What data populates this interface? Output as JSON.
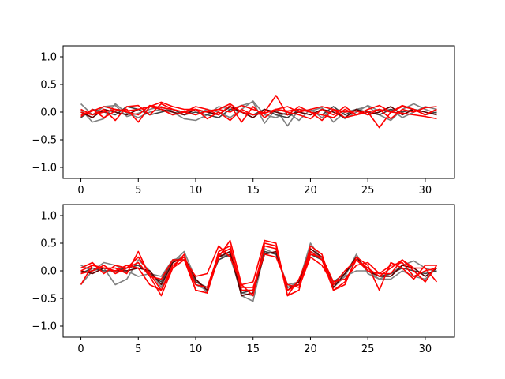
{
  "chart_data": [
    {
      "type": "line",
      "ylim": [
        -1.2,
        1.2
      ],
      "xlim": [
        -1.55,
        32.55
      ],
      "xticks": [
        0,
        5,
        10,
        15,
        20,
        25,
        30
      ],
      "yticks": [
        -1.0,
        -0.5,
        0.0,
        0.5,
        1.0
      ],
      "ytick_labels": [
        "−1.0",
        "−0.5",
        "0.0",
        "0.5",
        "1.0"
      ],
      "grid": false,
      "x": [
        0,
        1,
        2,
        3,
        4,
        5,
        6,
        7,
        8,
        9,
        10,
        11,
        12,
        13,
        14,
        15,
        16,
        17,
        18,
        19,
        20,
        21,
        22,
        23,
        24,
        25,
        26,
        27,
        28,
        29,
        30,
        31
      ],
      "series": [
        {
          "color": "#808080",
          "values": [
            0.15,
            -0.05,
            0.1,
            0.12,
            -0.08,
            -0.02,
            0.05,
            0.1,
            0.0,
            -0.12,
            -0.15,
            -0.05,
            0.1,
            0.05,
            0.12,
            0.18,
            -0.2,
            0.05,
            -0.25,
            0.05,
            0.02,
            0.08,
            -0.18,
            0.0,
            0.05,
            0.1,
            -0.05,
            -0.15,
            0.05,
            0.15,
            0.05,
            -0.02
          ]
        },
        {
          "color": "#808080",
          "values": [
            0.05,
            -0.18,
            -0.12,
            0.15,
            -0.02,
            -0.1,
            0.0,
            0.05,
            -0.05,
            0.02,
            -0.05,
            0.05,
            0.0,
            -0.1,
            0.05,
            0.2,
            -0.05,
            -0.1,
            0.0,
            -0.15,
            0.05,
            -0.1,
            0.05,
            -0.12,
            0.0,
            0.12,
            0.02,
            0.05,
            -0.1,
            0.0,
            0.1,
            0.05
          ]
        },
        {
          "color": "#404040",
          "values": [
            -0.1,
            0.05,
            0.0,
            -0.05,
            0.1,
            0.05,
            -0.05,
            0.0,
            0.05,
            -0.05,
            0.0,
            -0.05,
            -0.1,
            0.05,
            0.0,
            -0.05,
            0.05,
            -0.05,
            -0.1,
            0.05,
            0.0,
            -0.05,
            0.1,
            -0.05,
            0.05,
            0.0,
            -0.05,
            0.05,
            0.0,
            0.05,
            -0.05,
            0.0
          ]
        },
        {
          "color": "#600000",
          "values": [
            0.0,
            -0.1,
            0.05,
            0.0,
            -0.05,
            0.05,
            0.1,
            0.05,
            0.0,
            -0.05,
            0.05,
            0.0,
            -0.05,
            0.1,
            0.0,
            -0.1,
            0.05,
            0.0,
            -0.05,
            0.0,
            -0.05,
            0.05,
            0.0,
            -0.1,
            0.05,
            -0.05,
            0.0,
            0.1,
            -0.05,
            0.05,
            0.0,
            -0.05
          ]
        },
        {
          "color": "#ff0000",
          "values": [
            -0.08,
            0.05,
            -0.1,
            0.02,
            0.05,
            -0.18,
            0.1,
            0.05,
            -0.05,
            0.0,
            0.05,
            -0.12,
            0.0,
            -0.15,
            0.05,
            -0.05,
            0.0,
            0.3,
            -0.05,
            0.1,
            0.0,
            -0.05,
            -0.1,
            0.05,
            -0.05,
            0.0,
            -0.28,
            0.0,
            0.12,
            0.05,
            -0.05,
            0.05
          ]
        },
        {
          "color": "#ff0000",
          "values": [
            0.0,
            -0.05,
            0.05,
            -0.15,
            0.1,
            0.12,
            -0.05,
            0.15,
            0.05,
            0.0,
            0.1,
            0.05,
            -0.05,
            0.12,
            -0.18,
            0.1,
            -0.1,
            0.05,
            0.0,
            -0.05,
            -0.12,
            0.05,
            -0.05,
            0.1,
            -0.05,
            0.0,
            0.05,
            -0.12,
            0.05,
            0.0,
            0.08,
            0.1
          ]
        },
        {
          "color": "#ff0000",
          "values": [
            -0.05,
            0.02,
            0.1,
            0.05,
            0.0,
            -0.05,
            0.12,
            0.08,
            0.05,
            0.0,
            -0.05,
            0.02,
            0.05,
            0.0,
            0.12,
            0.05,
            -0.02,
            0.05,
            0.02,
            0.05,
            0.0,
            -0.15,
            0.05,
            -0.1,
            -0.05,
            0.05,
            0.12,
            0.0,
            0.1,
            0.05,
            -0.05,
            0.05
          ]
        },
        {
          "color": "#ff0000",
          "values": [
            0.05,
            -0.05,
            0.0,
            0.05,
            0.02,
            0.05,
            0.1,
            0.18,
            0.1,
            0.05,
            0.05,
            0.0,
            0.05,
            0.15,
            0.0,
            -0.05,
            -0.02,
            0.05,
            0.1,
            0.0,
            0.05,
            0.1,
            0.05,
            0.0,
            0.02,
            -0.05,
            0.05,
            0.0,
            -0.02,
            -0.05,
            -0.08,
            -0.12
          ]
        }
      ]
    },
    {
      "type": "line",
      "ylim": [
        -1.2,
        1.2
      ],
      "xlim": [
        -1.55,
        32.55
      ],
      "xticks": [
        0,
        5,
        10,
        15,
        20,
        25,
        30
      ],
      "yticks": [
        -1.0,
        -0.5,
        0.0,
        0.5,
        1.0
      ],
      "ytick_labels": [
        "−1.0",
        "−0.5",
        "0.0",
        "0.5",
        "1.0"
      ],
      "grid": false,
      "x": [
        0,
        1,
        2,
        3,
        4,
        5,
        6,
        7,
        8,
        9,
        10,
        11,
        12,
        13,
        14,
        15,
        16,
        17,
        18,
        19,
        20,
        21,
        22,
        23,
        24,
        25,
        26,
        27,
        28,
        29,
        30,
        31
      ],
      "series": [
        {
          "color": "#808080",
          "values": [
            -0.25,
            0.0,
            0.05,
            -0.25,
            -0.15,
            0.2,
            0.0,
            -0.3,
            0.15,
            0.35,
            -0.15,
            -0.4,
            0.25,
            0.3,
            -0.45,
            -0.55,
            0.35,
            0.3,
            -0.3,
            -0.2,
            0.5,
            0.2,
            -0.3,
            -0.1,
            0.3,
            -0.05,
            -0.15,
            -0.05,
            0.1,
            0.18,
            0.05,
            -0.02
          ]
        },
        {
          "color": "#808080",
          "values": [
            0.1,
            0.0,
            0.15,
            0.1,
            0.0,
            -0.1,
            -0.05,
            -0.1,
            0.2,
            0.25,
            -0.25,
            -0.35,
            0.3,
            0.25,
            -0.4,
            -0.45,
            0.4,
            0.3,
            -0.25,
            -0.2,
            0.35,
            0.25,
            -0.25,
            -0.1,
            0.0,
            0.0,
            -0.15,
            -0.15,
            0.0,
            -0.1,
            -0.15,
            0.05
          ]
        },
        {
          "color": "#404040",
          "values": [
            -0.05,
            0.05,
            0.0,
            0.0,
            0.05,
            0.1,
            -0.05,
            -0.2,
            0.2,
            0.2,
            -0.2,
            -0.3,
            0.2,
            0.3,
            -0.4,
            -0.35,
            0.35,
            0.3,
            -0.3,
            -0.25,
            0.3,
            0.2,
            -0.2,
            -0.05,
            0.2,
            0.05,
            -0.1,
            -0.05,
            0.05,
            0.0,
            -0.05,
            0.0
          ]
        },
        {
          "color": "#600000",
          "values": [
            0.0,
            -0.05,
            0.05,
            0.0,
            0.0,
            0.05,
            0.0,
            -0.25,
            0.15,
            0.25,
            -0.15,
            -0.35,
            0.25,
            0.35,
            -0.45,
            -0.4,
            0.3,
            0.35,
            -0.35,
            -0.2,
            0.4,
            0.25,
            -0.3,
            -0.05,
            0.25,
            0.0,
            -0.1,
            -0.1,
            0.1,
            0.05,
            -0.1,
            0.05
          ]
        },
        {
          "color": "#ff0000",
          "values": [
            -0.25,
            0.1,
            0.05,
            0.05,
            -0.05,
            0.35,
            -0.1,
            -0.45,
            0.05,
            0.2,
            -0.1,
            -0.05,
            0.45,
            0.25,
            -0.25,
            -0.2,
            0.55,
            0.5,
            -0.45,
            -0.35,
            0.45,
            0.3,
            -0.35,
            -0.25,
            0.25,
            0.1,
            -0.35,
            0.15,
            0.05,
            -0.15,
            0.1,
            0.1
          ]
        },
        {
          "color": "#ff0000",
          "values": [
            0.05,
            0.15,
            -0.05,
            0.1,
            0.05,
            0.25,
            -0.05,
            -0.35,
            0.05,
            0.3,
            -0.35,
            -0.4,
            0.25,
            0.55,
            -0.25,
            -0.45,
            0.5,
            0.45,
            -0.45,
            -0.15,
            0.35,
            0.2,
            -0.35,
            -0.2,
            0.2,
            0.05,
            -0.1,
            0.05,
            0.2,
            0.0,
            -0.2,
            0.1
          ]
        },
        {
          "color": "#ff0000",
          "values": [
            0.0,
            0.1,
            0.05,
            0.0,
            0.1,
            0.05,
            -0.25,
            -0.35,
            0.1,
            0.25,
            -0.25,
            -0.3,
            0.3,
            0.4,
            -0.3,
            -0.3,
            0.3,
            0.25,
            -0.25,
            -0.3,
            0.25,
            0.1,
            -0.25,
            0.0,
            0.2,
            0.0,
            -0.05,
            0.1,
            0.15,
            -0.1,
            0.0,
            0.05
          ]
        },
        {
          "color": "#ff0000",
          "values": [
            -0.05,
            0.0,
            0.1,
            -0.05,
            0.05,
            0.15,
            -0.1,
            -0.15,
            0.2,
            0.2,
            -0.35,
            -0.4,
            0.35,
            0.45,
            -0.35,
            -0.35,
            0.45,
            0.4,
            -0.35,
            -0.25,
            0.3,
            0.25,
            -0.2,
            -0.15,
            0.1,
            0.15,
            -0.05,
            -0.05,
            0.2,
            0.05,
            0.05,
            -0.2
          ]
        }
      ]
    }
  ]
}
